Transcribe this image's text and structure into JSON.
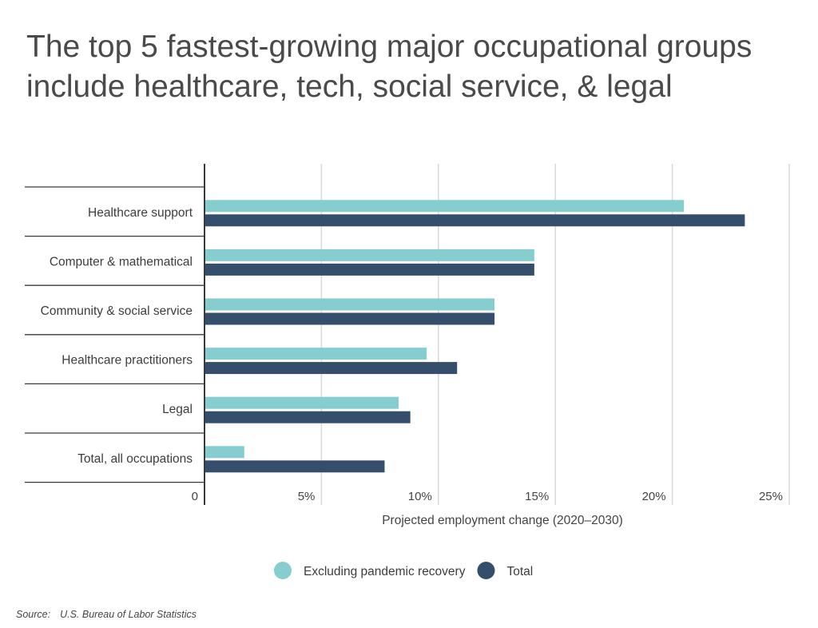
{
  "title_lines": [
    "The top 5 fastest-growing major occupational groups",
    "include healthcare, tech, social service, & legal"
  ],
  "source": {
    "label": "Source:",
    "text": "U.S. Bureau of Labor Statistics"
  },
  "colors": {
    "excluding": "#86cdd0",
    "total": "#344e6c",
    "grid": "#d9d9d9",
    "axis": "#3a3a3a"
  },
  "chart_data": {
    "type": "bar",
    "orientation": "horizontal",
    "title": "The top 5 fastest-growing major occupational groups include healthcare, tech, social service, & legal",
    "xlabel": "Projected employment change (2020–2030)",
    "ylabel": "",
    "xlim": [
      0,
      25
    ],
    "xticks": [
      {
        "value": 0,
        "label": "0"
      },
      {
        "value": 5,
        "label": "5%"
      },
      {
        "value": 10,
        "label": "10%"
      },
      {
        "value": 15,
        "label": "15%"
      },
      {
        "value": 20,
        "label": "20%"
      },
      {
        "value": 25,
        "label": "25%"
      }
    ],
    "grid": true,
    "legend": "bottom-center",
    "categories": [
      "Healthcare support",
      "Computer & mathematical",
      "Community & social service",
      "Healthcare practitioners",
      "Legal",
      "Total, all occupations"
    ],
    "series": [
      {
        "name": "Excluding pandemic recovery",
        "color": "#86cdd0",
        "values": [
          20.5,
          14.1,
          12.4,
          9.5,
          8.3,
          1.7
        ]
      },
      {
        "name": "Total",
        "color": "#344e6c",
        "values": [
          23.1,
          14.1,
          12.4,
          10.8,
          8.8,
          7.7
        ]
      }
    ]
  }
}
